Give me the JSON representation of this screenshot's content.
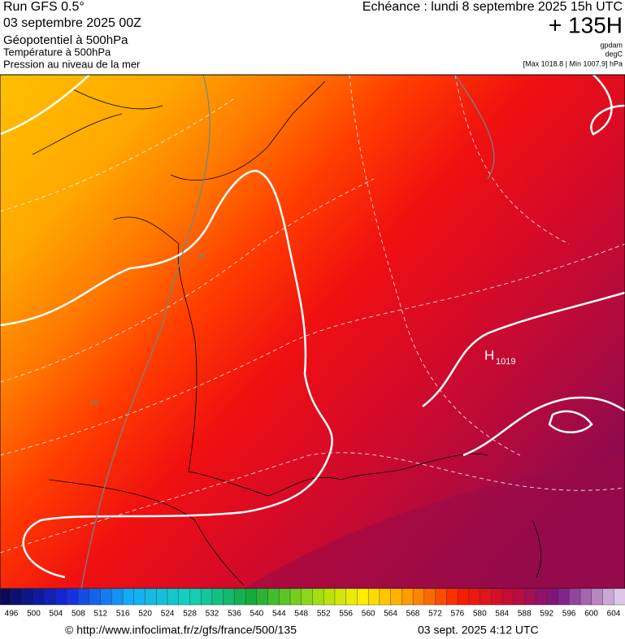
{
  "header": {
    "run": "Run GFS 0.5°",
    "date": "03 septembre 2025 00Z",
    "field1": "Géopotentiel à 500hPa",
    "field2": "Température à 500hPa",
    "field3": "Pression au niveau de la mer",
    "echeance": "Echéance : lundi 8 septembre 2025 15h UTC",
    "lead": "+ 135H",
    "unit1": "gpdam",
    "unit2": "degC",
    "range": "[Max 1018.8 | Min 1007.9] hPa"
  },
  "map": {
    "high_letter": "H",
    "high_value": "1019",
    "contour_label_1": "16",
    "contour_label_2": "16"
  },
  "colorbar": {
    "ticks": [
      496,
      500,
      504,
      508,
      512,
      516,
      520,
      524,
      528,
      532,
      536,
      540,
      544,
      548,
      552,
      556,
      560,
      564,
      568,
      572,
      576,
      580,
      584,
      588,
      592,
      596,
      600,
      604
    ]
  },
  "footer": {
    "url": "© http://www.infoclimat.fr/z/gfs/france/500/135",
    "timestamp": "03 sept. 2025  4:12 UTC"
  }
}
